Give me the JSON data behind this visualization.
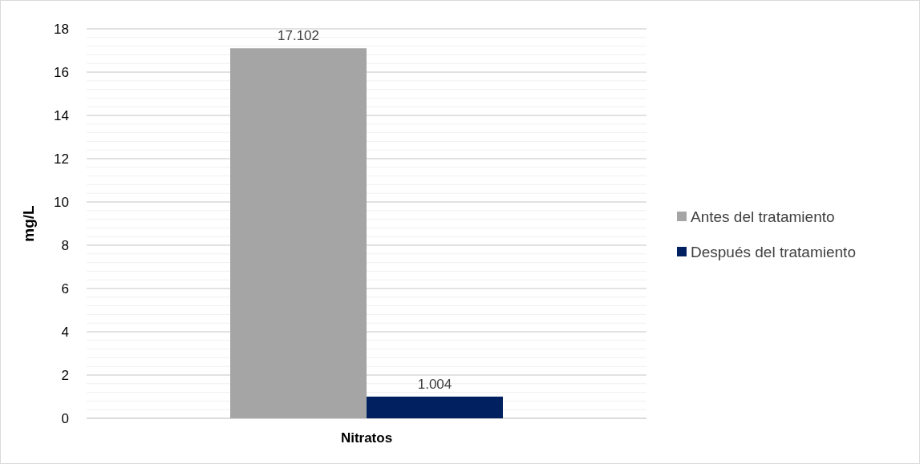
{
  "chart_data": {
    "type": "bar",
    "ylabel": "mg/L",
    "categories": [
      "Nitratos"
    ],
    "series": [
      {
        "name": "Antes del tratamiento",
        "color": "#a5a5a5",
        "values": [
          17.102
        ]
      },
      {
        "name": "Después del tratamiento",
        "color": "#002060",
        "values": [
          1.004
        ]
      }
    ],
    "ylim": [
      0,
      18
    ],
    "yticks": [
      0,
      {
        "value": 0.4,
        "label": null
      },
      {
        "value": 0.8,
        "label": null
      },
      {
        "value": 1.2,
        "label": null
      },
      {
        "value": 1.6,
        "label": null
      },
      2,
      {
        "value": 2.4,
        "label": null
      },
      {
        "value": 2.8,
        "label": null
      },
      {
        "value": 3.2,
        "label": null
      },
      {
        "value": 3.6,
        "label": null
      },
      4,
      {
        "value": 4.4,
        "label": null
      },
      {
        "value": 4.8,
        "label": null
      },
      {
        "value": 5.2,
        "label": null
      },
      {
        "value": 5.6,
        "label": null
      },
      6,
      {
        "value": 6.4,
        "label": null
      },
      {
        "value": 6.8,
        "label": null
      },
      {
        "value": 7.2,
        "label": null
      },
      {
        "value": 7.6,
        "label": null
      },
      8,
      {
        "value": 8.4,
        "label": null
      },
      {
        "value": 8.8,
        "label": null
      },
      {
        "value": 9.2,
        "label": null
      },
      {
        "value": 9.6,
        "label": null
      },
      10,
      {
        "value": 10.4,
        "label": null
      },
      {
        "value": 10.8,
        "label": null
      },
      {
        "value": 11.2,
        "label": null
      },
      {
        "value": 11.6,
        "label": null
      },
      12,
      {
        "value": 12.4,
        "label": null
      },
      {
        "value": 12.8,
        "label": null
      },
      {
        "value": 13.2,
        "label": null
      },
      {
        "value": 13.6,
        "label": null
      },
      14,
      {
        "value": 14.4,
        "label": null
      },
      {
        "value": 14.8,
        "label": null
      },
      {
        "value": 15.2,
        "label": null
      },
      {
        "value": 15.6,
        "label": null
      },
      16,
      {
        "value": 16.4,
        "label": null
      },
      {
        "value": 16.8,
        "label": null
      },
      {
        "value": 17.2,
        "label": null
      },
      {
        "value": 17.6,
        "label": null
      },
      18
    ],
    "grid": true,
    "legend": "right",
    "data_labels": true
  }
}
